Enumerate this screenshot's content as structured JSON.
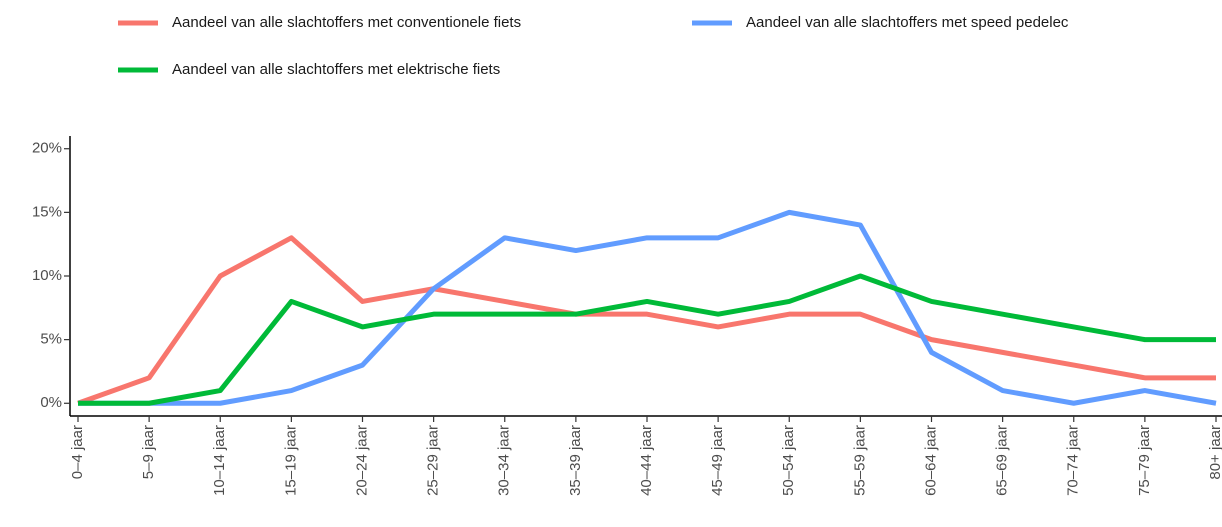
{
  "chart_data": {
    "type": "line",
    "categories": [
      "0–4 jaar",
      "5–9 jaar",
      "10–14 jaar",
      "15–19 jaar",
      "20–24 jaar",
      "25–29 jaar",
      "30–34 jaar",
      "35–39 jaar",
      "40–44 jaar",
      "45–49 jaar",
      "50–54 jaar",
      "55–59 jaar",
      "60–64 jaar",
      "65–69 jaar",
      "70–74 jaar",
      "75–79 jaar",
      "80+ jaar"
    ],
    "series": [
      {
        "name": "Aandeel van alle slachtoffers met conventionele fiets",
        "color": "#F8766D",
        "values": [
          0,
          2,
          10,
          13,
          8,
          9,
          8,
          7,
          7,
          6,
          7,
          7,
          5,
          4,
          3,
          2,
          2
        ]
      },
      {
        "name": "Aandeel van alle slachtoffers met speed pedelec",
        "color": "#619CFF",
        "values": [
          0,
          0,
          0,
          1,
          3,
          9,
          13,
          12,
          13,
          13,
          15,
          14,
          4,
          1,
          0,
          1,
          0
        ]
      },
      {
        "name": "Aandeel van alle slachtoffers met elektrische fiets",
        "color": "#00BA38",
        "values": [
          0,
          0,
          1,
          8,
          6,
          7,
          7,
          7,
          8,
          7,
          8,
          10,
          8,
          7,
          6,
          5,
          5
        ]
      }
    ],
    "ylim": [
      -1,
      21
    ],
    "yticks": [
      {
        "value": 0,
        "label": "0%"
      },
      {
        "value": 5,
        "label": "5%"
      },
      {
        "value": 10,
        "label": "10%"
      },
      {
        "value": 15,
        "label": "15%"
      },
      {
        "value": 20,
        "label": "20%"
      }
    ],
    "legend": "top"
  }
}
